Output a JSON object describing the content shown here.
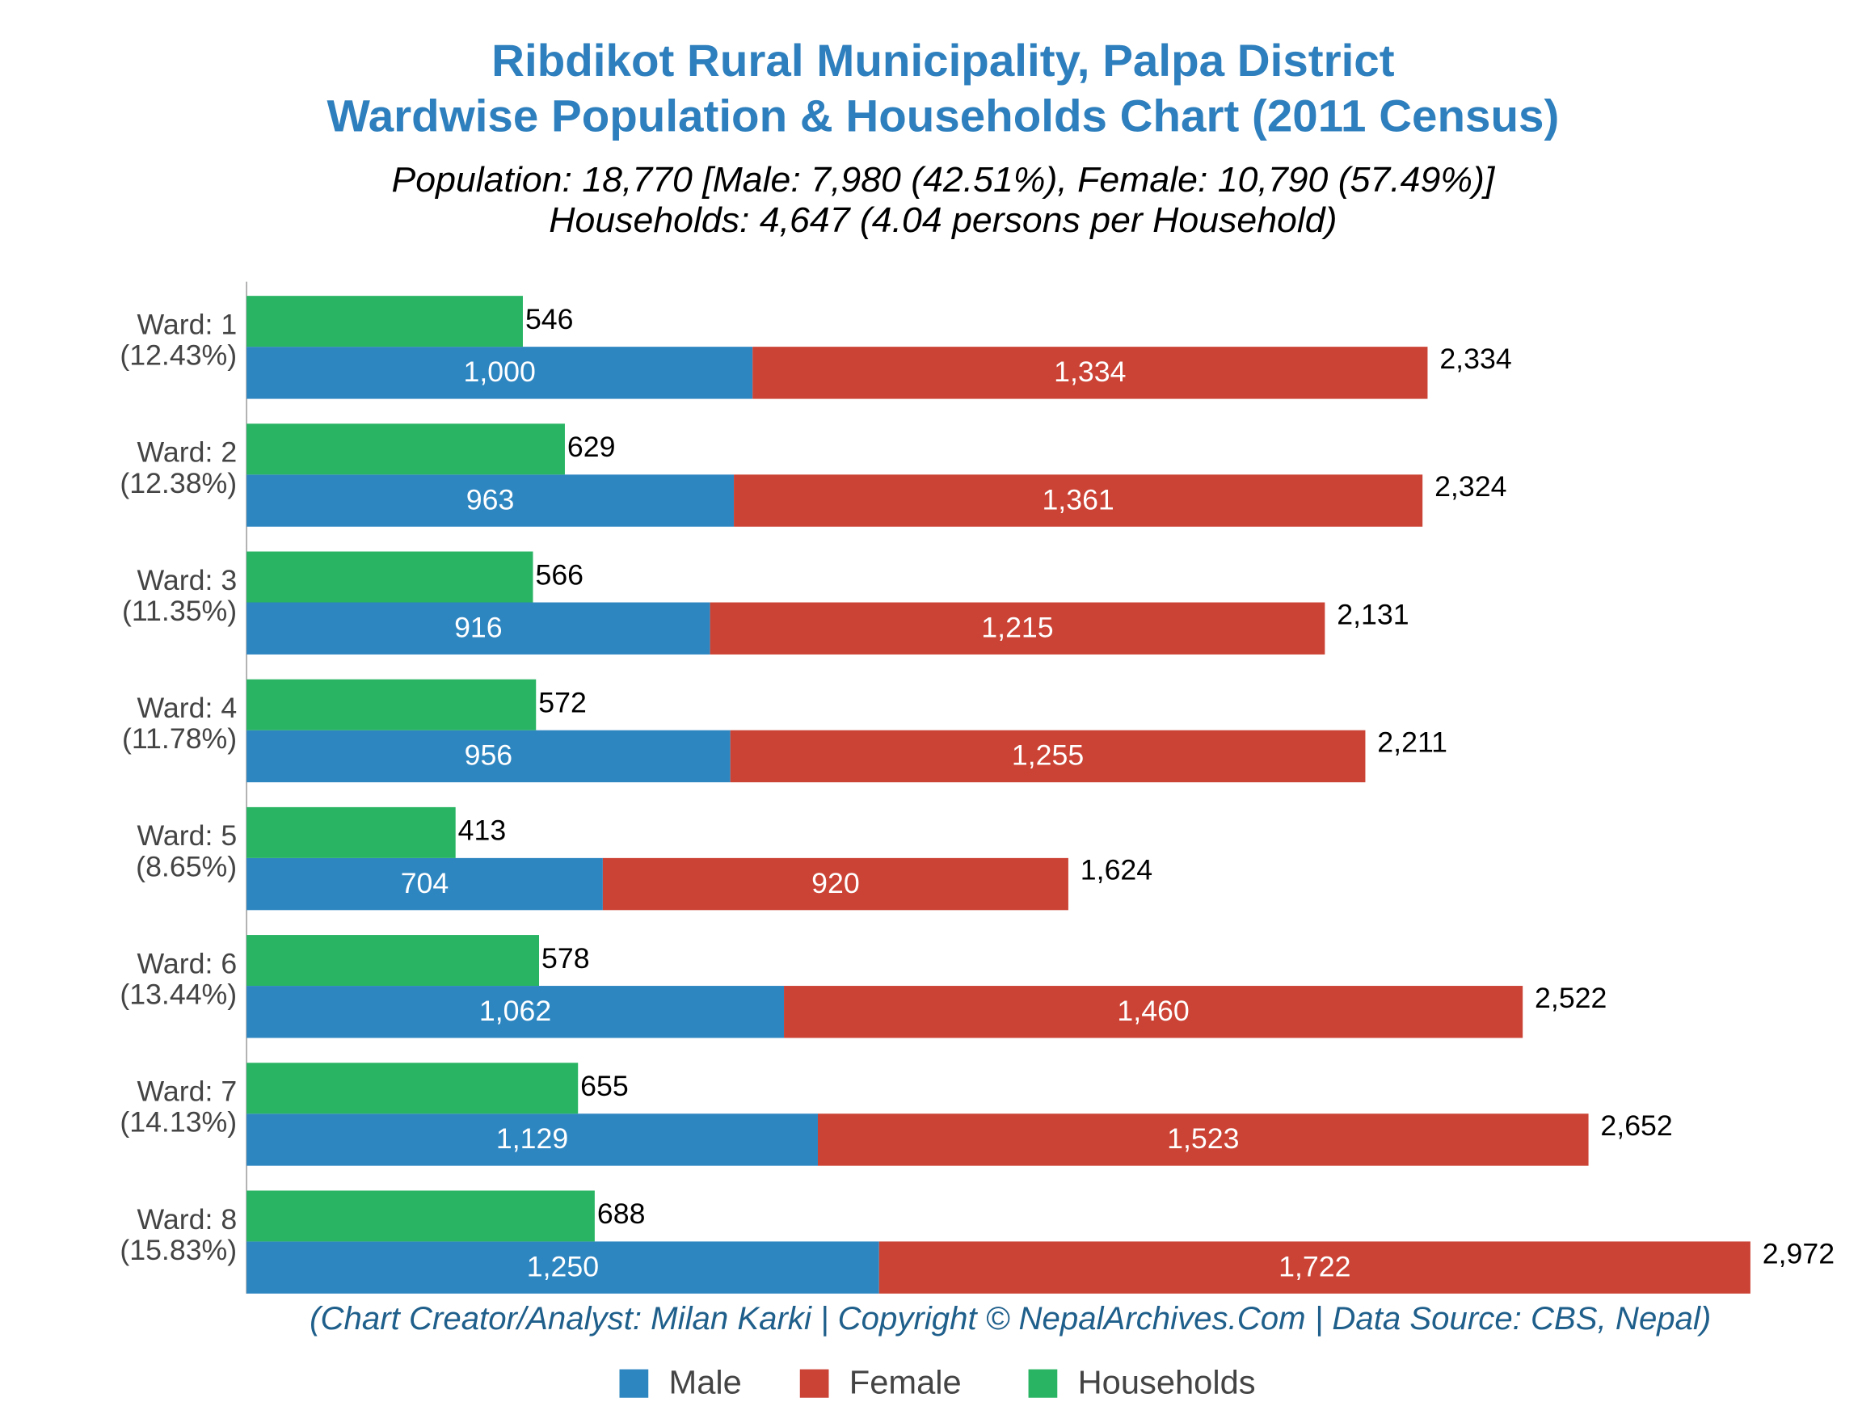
{
  "chart_data": {
    "type": "bar",
    "orientation": "horizontal",
    "title": [
      "Ribdikot Rural Municipality, Palpa District",
      "Wardwise Population & Households Chart (2011 Census)"
    ],
    "subtitle": [
      "Population: 18,770 [Male: 7,980 (42.51%), Female: 10,790 (57.49%)]",
      "Households: 4,647 (4.04 persons per Household)"
    ],
    "source": "(Chart Creator/Analyst: Milan Karki | Copyright © NepalArchives.Com | Data Source: CBS, Nepal)",
    "categories": [
      "Ward: 1",
      "Ward: 2",
      "Ward: 3",
      "Ward: 4",
      "Ward: 5",
      "Ward: 6",
      "Ward: 7",
      "Ward: 8"
    ],
    "category_shares": [
      "(12.43%)",
      "(12.38%)",
      "(11.35%)",
      "(11.78%)",
      "(8.65%)",
      "(13.44%)",
      "(14.13%)",
      "(15.83%)"
    ],
    "series": [
      {
        "name": "Male",
        "color": "#2e86c1",
        "stack": true,
        "values": [
          1000,
          963,
          916,
          956,
          704,
          1062,
          1129,
          1250
        ],
        "value_labels": [
          "1,000",
          "963",
          "916",
          "956",
          "704",
          "1,062",
          "1,129",
          "1,250"
        ]
      },
      {
        "name": "Female",
        "color": "#cb4335",
        "stack": true,
        "values": [
          1334,
          1361,
          1215,
          1255,
          920,
          1460,
          1523,
          1722
        ],
        "value_labels": [
          "1,334",
          "1,361",
          "1,215",
          "1,255",
          "920",
          "1,460",
          "1,523",
          "1,722"
        ]
      },
      {
        "name": "Households",
        "color": "#28b463",
        "stack": false,
        "values": [
          546,
          629,
          566,
          572,
          413,
          578,
          655,
          688
        ]
      }
    ],
    "totals": [
      2334,
      2324,
      2131,
      2211,
      1624,
      2522,
      2652,
      2972
    ],
    "total_labels": [
      "2,334",
      "2,324",
      "2,131",
      "2,211",
      "1,624",
      "2,522",
      "2,652",
      "2,972"
    ],
    "xlim": [
      0,
      3000
    ],
    "legend": "bottom"
  }
}
